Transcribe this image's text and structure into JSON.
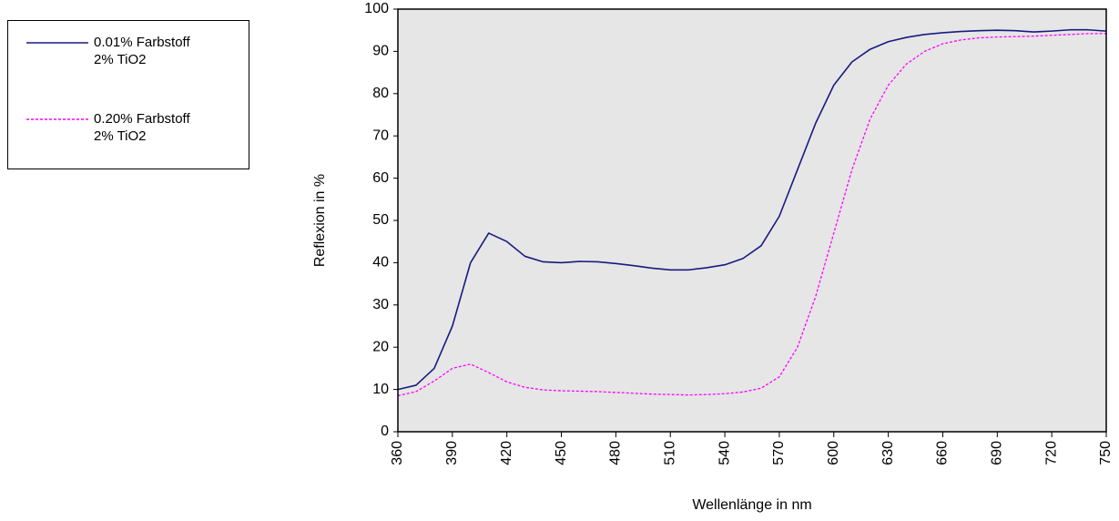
{
  "chart_data": {
    "type": "line",
    "xlabel": "Wellenlänge in nm",
    "ylabel": "Reflexion in %",
    "x": [
      360,
      370,
      380,
      390,
      400,
      410,
      420,
      430,
      440,
      450,
      460,
      470,
      480,
      490,
      500,
      510,
      520,
      530,
      540,
      550,
      560,
      570,
      580,
      590,
      600,
      610,
      620,
      630,
      640,
      650,
      660,
      670,
      680,
      690,
      700,
      710,
      720,
      730,
      740,
      750
    ],
    "series": [
      {
        "name": "0.01% Farbstoff\n2% TiO2",
        "color": "#1a1a80",
        "linestyle": "solid",
        "values": [
          10,
          11,
          15,
          25,
          40,
          47,
          45,
          41.5,
          40.2,
          40,
          40.3,
          40.2,
          39.8,
          39.3,
          38.7,
          38.3,
          38.3,
          38.8,
          39.5,
          41,
          44,
          51,
          62,
          73,
          82,
          87.5,
          90.5,
          92.3,
          93.3,
          94,
          94.4,
          94.7,
          94.9,
          95,
          94.9,
          94.6,
          94.8,
          95.1,
          95.1,
          94.8
        ]
      },
      {
        "name": "0.20% Farbstoff\n2% TiO2",
        "color": "#ff00ff",
        "linestyle": "dashed",
        "values": [
          8.5,
          9.5,
          12,
          15,
          16,
          14,
          11.8,
          10.5,
          9.9,
          9.7,
          9.6,
          9.5,
          9.3,
          9.1,
          8.9,
          8.8,
          8.7,
          8.8,
          9,
          9.4,
          10.3,
          13,
          20,
          32,
          47,
          62,
          74,
          82,
          87,
          90,
          91.8,
          92.7,
          93.2,
          93.4,
          93.5,
          93.6,
          93.8,
          94,
          94.2,
          94.2
        ]
      }
    ],
    "xlim": [
      360,
      750
    ],
    "xticks": [
      360,
      390,
      420,
      450,
      480,
      510,
      540,
      570,
      600,
      630,
      660,
      690,
      720,
      750
    ],
    "ylim": [
      0,
      100
    ],
    "yticks": [
      0,
      10,
      20,
      30,
      40,
      50,
      60,
      70,
      80,
      90,
      100
    ],
    "plot_background": "#e6e6e6"
  }
}
